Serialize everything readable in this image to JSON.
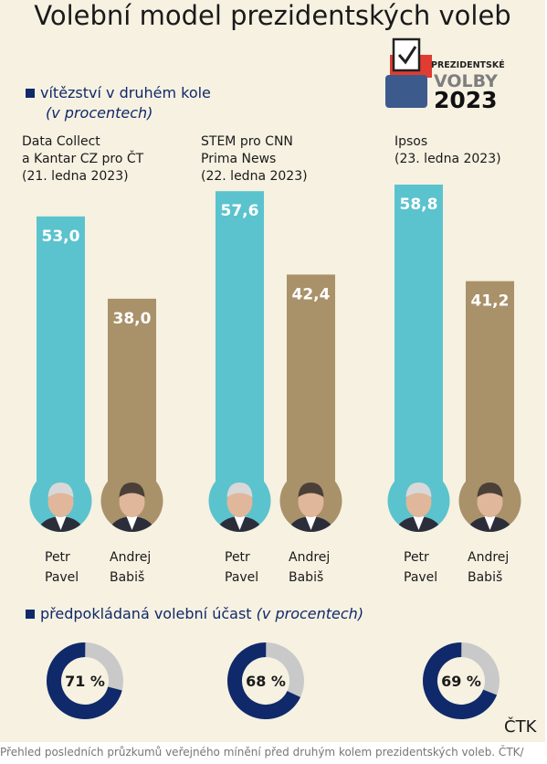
{
  "title": "Volební model prezidentských voleb",
  "logo": {
    "line1": "PREZIDENTSKÉ",
    "line2": "VOLBY",
    "line3": "2023"
  },
  "section_runoff": {
    "text": "vítězství v druhém kole",
    "unit": "(v procentech)"
  },
  "section_turnout": {
    "text": "předpokládaná volební účast ",
    "unit": "(v procentech)"
  },
  "footer": "Přehled posledních průzkumů veřejného mínění před druhým kolem prezidentských voleb. ČTK/",
  "source": "ČTK",
  "colors": {
    "pavel": "#5bc3cd",
    "babis": "#a99169",
    "turnout": "#10296a",
    "turnout_rest": "#c9c9c9",
    "background": "#f6f1e1"
  },
  "chart_data": [
    {
      "type": "bar",
      "title": "vítězství v druhém kole",
      "subtitle": "(v procentech)",
      "categories": [
        "Data Collect\na Kantar CZ pro ČT\n(21. ledna 2023)",
        "STEM pro CNN\nPrima News\n(22. ledna 2023)",
        "Ipsos\n(23. ledna 2023)"
      ],
      "series": [
        {
          "name": "Petr\nPavel",
          "values": [
            53.0,
            57.6,
            58.8
          ],
          "labels": [
            "53,0",
            "57,6",
            "58,8"
          ]
        },
        {
          "name": "Andrej\nBabiš",
          "values": [
            38.0,
            42.4,
            41.2
          ],
          "labels": [
            "38,0",
            "42,4",
            "41,2"
          ]
        }
      ],
      "ylim": [
        0,
        60
      ],
      "grid": false
    },
    {
      "type": "pie",
      "title": "předpokládaná volební účast",
      "subtitle": "(v procentech)",
      "values": [
        71,
        68,
        69
      ],
      "labels": [
        "71 %",
        "68 %",
        "69 %"
      ]
    }
  ]
}
